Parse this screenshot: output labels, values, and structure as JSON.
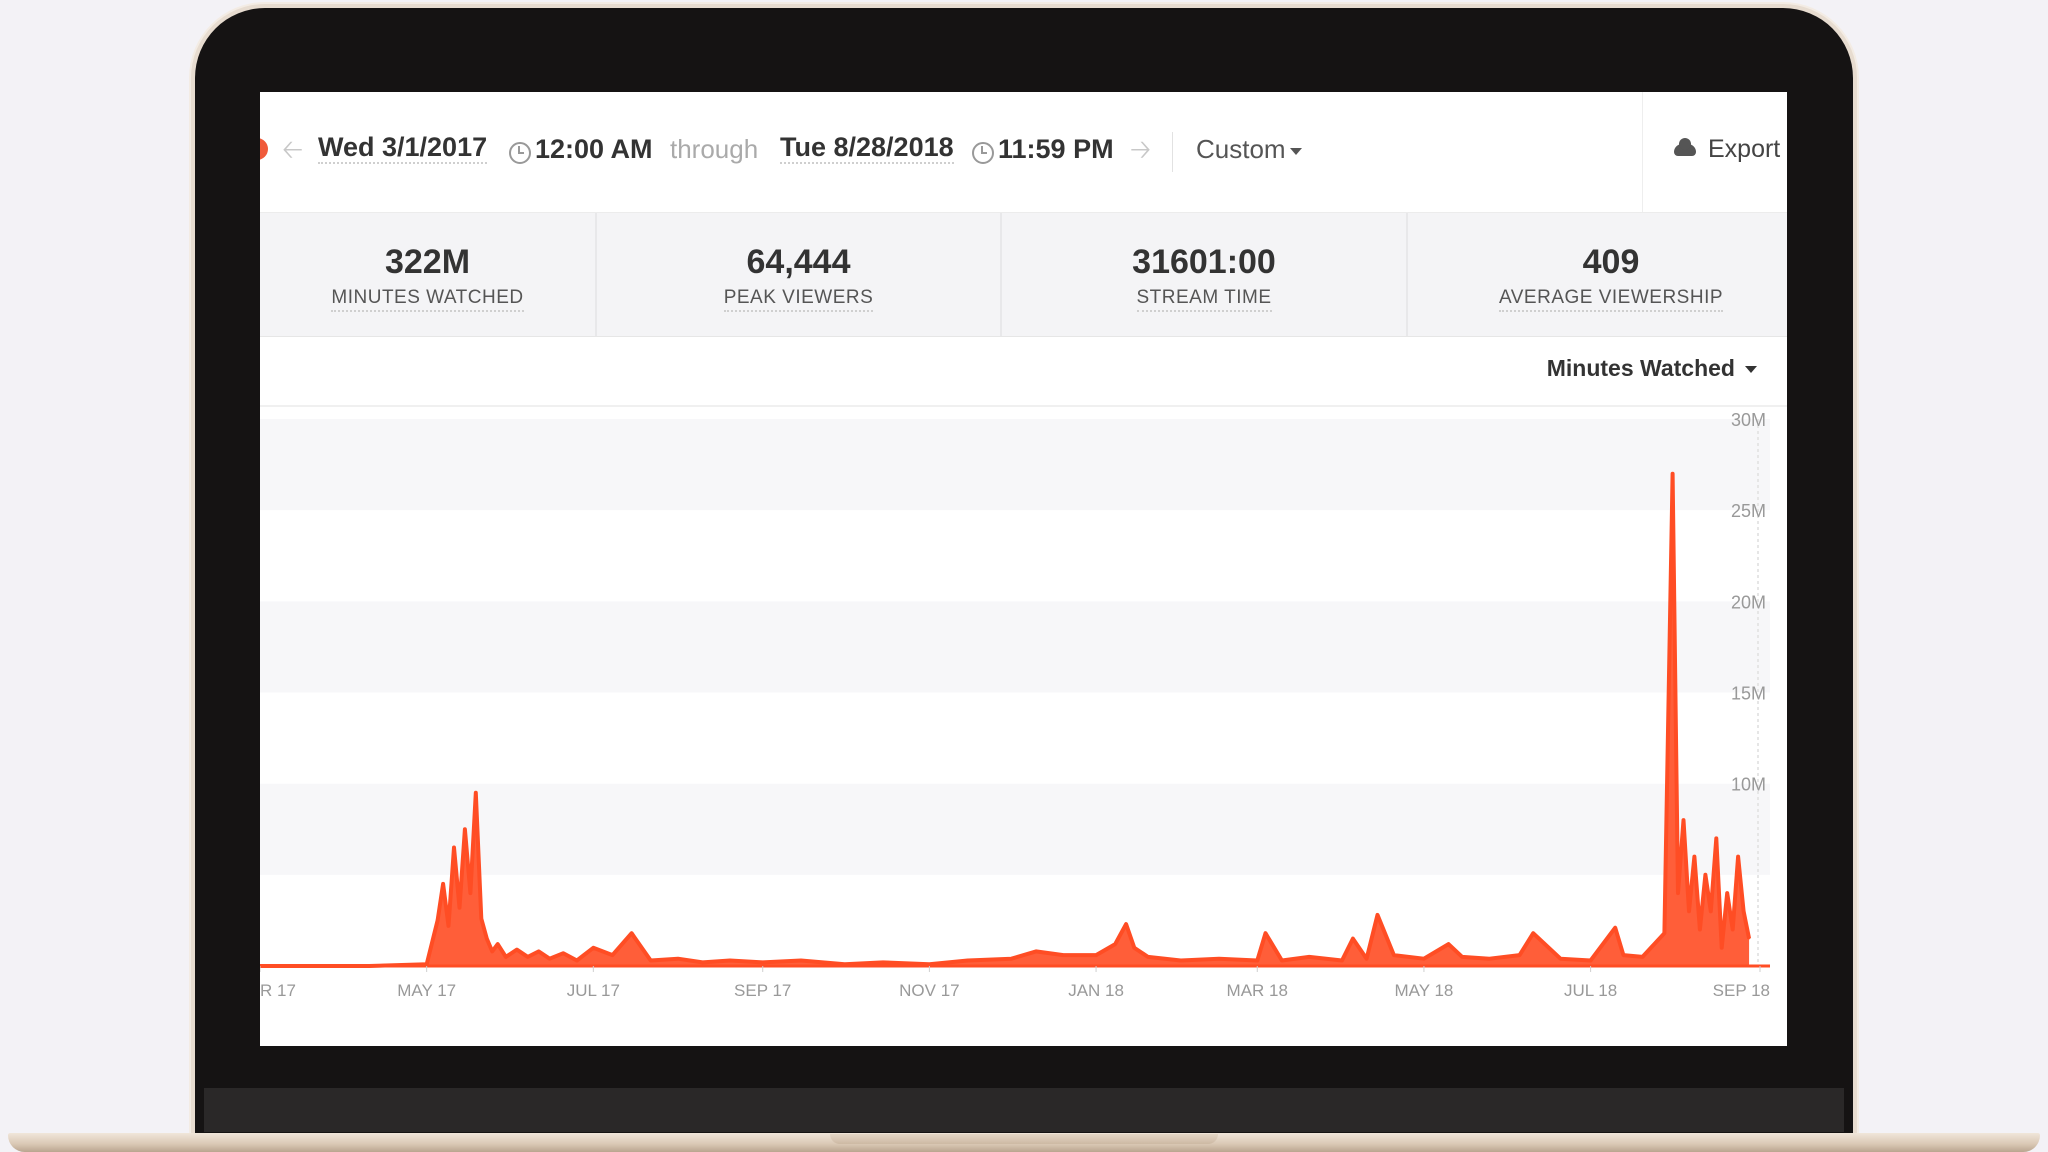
{
  "toolbar": {
    "prev_icon": "arrow-left-icon",
    "start_date": "Wed 3/1/2017",
    "start_time": "12:00 AM",
    "through_label": "through",
    "end_date": "Tue 8/28/2018",
    "end_time": "11:59 PM",
    "next_icon": "arrow-right-icon",
    "range_select": "Custom",
    "export_label": "Export",
    "export_icon": "cloud-icon"
  },
  "stats": [
    {
      "value": "322M",
      "label": "MINUTES WATCHED"
    },
    {
      "value": "64,444",
      "label": "PEAK VIEWERS"
    },
    {
      "value": "31601:00",
      "label": "STREAM TIME"
    },
    {
      "value": "409",
      "label": "AVERAGE VIEWERSHIP"
    }
  ],
  "metric_select": "Minutes Watched",
  "colors": {
    "accent": "#f05a3a",
    "line": "#ff4d24",
    "band": "#f7f7f9"
  },
  "chart_data": {
    "type": "area",
    "xlabel": "",
    "ylabel": "",
    "x_tick_labels": [
      "R 17",
      "MAY 17",
      "JUL 17",
      "SEP 17",
      "NOV 17",
      "JAN 18",
      "MAR 18",
      "MAY 18",
      "JUL 18",
      "SEP 18"
    ],
    "y_tick_labels": [
      "",
      "",
      "10M",
      "15M",
      "20M",
      "25M",
      "30M"
    ],
    "y_ticks": [
      0,
      5,
      10,
      15,
      20,
      25,
      30
    ],
    "ylim": [
      0,
      30
    ],
    "y_unit": "M",
    "grid": "alternating horizontal bands",
    "series": [
      {
        "x": [
          "2017-03-01",
          "2017-04-10",
          "2017-05-01",
          "2017-05-05",
          "2017-05-07",
          "2017-05-09",
          "2017-05-11",
          "2017-05-13",
          "2017-05-15",
          "2017-05-17",
          "2017-05-19",
          "2017-05-21",
          "2017-05-23",
          "2017-05-25",
          "2017-05-27",
          "2017-05-30",
          "2017-06-03",
          "2017-06-07",
          "2017-06-11",
          "2017-06-15",
          "2017-06-20",
          "2017-06-25",
          "2017-07-01",
          "2017-07-08",
          "2017-07-15",
          "2017-07-22",
          "2017-08-01",
          "2017-08-10",
          "2017-08-20",
          "2017-09-01",
          "2017-09-15",
          "2017-10-01",
          "2017-10-15",
          "2017-11-01",
          "2017-11-15",
          "2017-12-01",
          "2017-12-10",
          "2017-12-20",
          "2018-01-01",
          "2018-01-08",
          "2018-01-12",
          "2018-01-15",
          "2018-01-20",
          "2018-02-01",
          "2018-02-15",
          "2018-03-01",
          "2018-03-04",
          "2018-03-10",
          "2018-03-20",
          "2018-04-01",
          "2018-04-05",
          "2018-04-10",
          "2018-04-14",
          "2018-04-20",
          "2018-05-01",
          "2018-05-10",
          "2018-05-15",
          "2018-05-25",
          "2018-06-05",
          "2018-06-10",
          "2018-06-20",
          "2018-07-01",
          "2018-07-10",
          "2018-07-13",
          "2018-07-20",
          "2018-07-28",
          "2018-07-31",
          "2018-08-02",
          "2018-08-04",
          "2018-08-06",
          "2018-08-08",
          "2018-08-10",
          "2018-08-12",
          "2018-08-14",
          "2018-08-16",
          "2018-08-18",
          "2018-08-20",
          "2018-08-22",
          "2018-08-24",
          "2018-08-26",
          "2018-08-28"
        ],
        "values": [
          0,
          0,
          0.1,
          2.5,
          4.5,
          2.2,
          6.5,
          3.2,
          7.5,
          4,
          9.5,
          2.6,
          1.5,
          0.8,
          1.2,
          0.5,
          0.9,
          0.5,
          0.8,
          0.4,
          0.7,
          0.3,
          1,
          0.6,
          1.8,
          0.3,
          0.4,
          0.2,
          0.3,
          0.2,
          0.3,
          0.1,
          0.2,
          0.1,
          0.3,
          0.4,
          0.8,
          0.6,
          0.6,
          1.2,
          2.3,
          1.0,
          0.5,
          0.3,
          0.4,
          0.3,
          1.8,
          0.3,
          0.5,
          0.3,
          1.5,
          0.4,
          2.8,
          0.6,
          0.4,
          1.2,
          0.5,
          0.4,
          0.6,
          1.8,
          0.4,
          0.3,
          2.1,
          0.6,
          0.5,
          1.8,
          27,
          4,
          8,
          3,
          6,
          2,
          5,
          3,
          7,
          1,
          4,
          2,
          6,
          3,
          1.5
        ]
      }
    ]
  }
}
